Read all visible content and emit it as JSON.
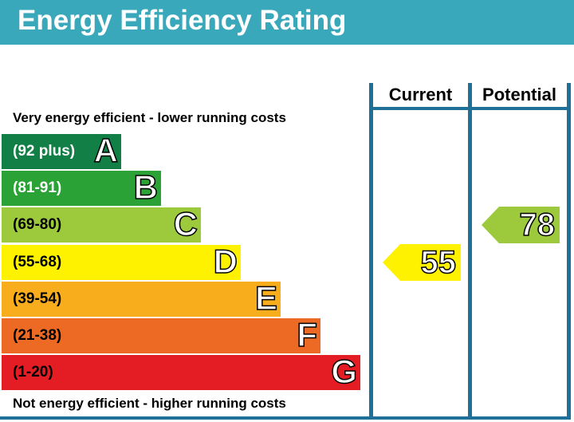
{
  "header": {
    "title": "Energy Efficiency Rating"
  },
  "captions": {
    "top": "Very energy efficient - lower running costs",
    "bottom": "Not energy efficient - higher running costs"
  },
  "columns": {
    "current": "Current",
    "potential": "Potential"
  },
  "chart_data": {
    "type": "bar",
    "title": "Energy Efficiency Rating",
    "bands": [
      {
        "letter": "A",
        "range": "(92 plus)",
        "color": "#128046"
      },
      {
        "letter": "B",
        "range": "(81-91)",
        "color": "#2aa236"
      },
      {
        "letter": "C",
        "range": "(69-80)",
        "color": "#9cca3c"
      },
      {
        "letter": "D",
        "range": "(55-68)",
        "color": "#fff200"
      },
      {
        "letter": "E",
        "range": "(39-54)",
        "color": "#f8ad1d"
      },
      {
        "letter": "F",
        "range": "(21-38)",
        "color": "#ed6a25"
      },
      {
        "letter": "G",
        "range": "(1-20)",
        "color": "#e31d23"
      }
    ],
    "current": {
      "value": 55,
      "band": "D",
      "color": "#fff200"
    },
    "potential": {
      "value": 78,
      "band": "C",
      "color": "#9cca3c"
    }
  }
}
